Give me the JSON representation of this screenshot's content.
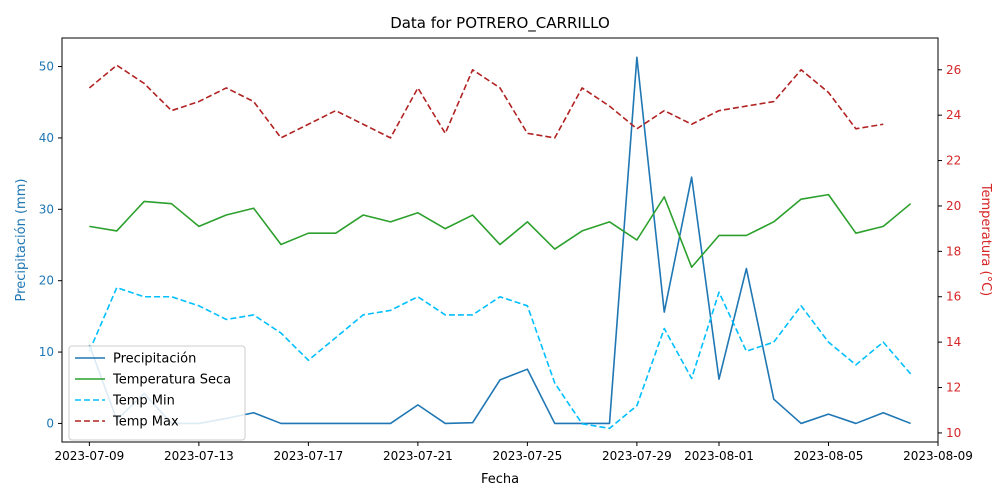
{
  "chart_data": {
    "type": "line",
    "title": "Data for POTRERO_CARRILLO",
    "xlabel": "Fecha",
    "ylabel_left": "Precipitación (mm)",
    "ylabel_right": "Temperatura (°C)",
    "x_range": [
      "2023-07-08",
      "2023-08-09"
    ],
    "ylim_left": [
      -2.6,
      54
    ],
    "ylim_right": [
      9.6,
      27.4
    ],
    "x_ticks": [
      "2023-07-09",
      "2023-07-13",
      "2023-07-17",
      "2023-07-21",
      "2023-07-25",
      "2023-07-29",
      "2023-08-01",
      "2023-08-05",
      "2023-08-09"
    ],
    "y_ticks_left": [
      0,
      10,
      20,
      30,
      40,
      50
    ],
    "y_ticks_right": [
      10,
      12,
      14,
      16,
      18,
      20,
      22,
      24,
      26
    ],
    "grid": false,
    "legend_position": "lower-left",
    "colors": {
      "precip": "#1f77b4",
      "temp_seca": "#2ca02c",
      "temp_min": "#00bfff",
      "temp_max": "#b22222",
      "left_axis_text": "#1f77b4",
      "right_axis_text": "#d62728"
    },
    "dates": [
      "2023-07-09",
      "2023-07-10",
      "2023-07-11",
      "2023-07-12",
      "2023-07-13",
      "2023-07-14",
      "2023-07-15",
      "2023-07-16",
      "2023-07-17",
      "2023-07-18",
      "2023-07-19",
      "2023-07-20",
      "2023-07-21",
      "2023-07-22",
      "2023-07-23",
      "2023-07-24",
      "2023-07-25",
      "2023-07-26",
      "2023-07-27",
      "2023-07-28",
      "2023-07-29",
      "2023-07-30",
      "2023-07-31",
      "2023-08-01",
      "2023-08-02",
      "2023-08-03",
      "2023-08-04",
      "2023-08-05",
      "2023-08-06",
      "2023-08-07",
      "2023-08-08"
    ],
    "series": [
      {
        "name": "Precipitación",
        "axis": "left",
        "style": "solid",
        "color_key": "precip",
        "values": [
          11.0,
          0.5,
          4.2,
          0.0,
          0.0,
          0.7,
          1.5,
          0.0,
          0.0,
          0.0,
          0.0,
          0.0,
          2.6,
          0.0,
          0.1,
          6.1,
          7.6,
          0.0,
          0.0,
          0.0,
          51.3,
          15.6,
          34.5,
          6.2,
          21.7,
          3.4,
          0.0,
          1.3,
          0.0,
          1.5,
          0.0
        ]
      },
      {
        "name": "Temperatura Seca",
        "axis": "right",
        "style": "solid",
        "color_key": "temp_seca",
        "values": [
          19.1,
          18.9,
          20.2,
          20.1,
          19.1,
          19.6,
          19.9,
          18.3,
          18.8,
          18.8,
          19.6,
          19.3,
          19.7,
          19.0,
          19.6,
          18.3,
          19.3,
          18.1,
          18.9,
          19.3,
          18.5,
          20.4,
          17.3,
          18.7,
          18.7,
          19.3,
          20.3,
          20.5,
          18.8,
          19.1,
          20.1
        ]
      },
      {
        "name": "Temp Min",
        "axis": "right",
        "style": "dashed",
        "color_key": "temp_min",
        "values": [
          13.6,
          16.4,
          16.0,
          16.0,
          15.6,
          15.0,
          15.2,
          14.4,
          13.2,
          14.2,
          15.2,
          15.4,
          16.0,
          15.2,
          15.2,
          16.0,
          15.6,
          12.2,
          10.4,
          10.2,
          11.2,
          14.6,
          12.4,
          16.2,
          13.6,
          14.0,
          15.6,
          14.0,
          13.0,
          14.0,
          12.6
        ]
      },
      {
        "name": "Temp Max",
        "axis": "right",
        "style": "dashed",
        "color_key": "temp_max",
        "values": [
          25.2,
          26.2,
          25.4,
          24.2,
          24.6,
          25.2,
          24.6,
          23.0,
          23.6,
          24.2,
          23.6,
          23.0,
          25.2,
          23.2,
          26.0,
          25.2,
          23.2,
          23.0,
          25.2,
          24.4,
          23.4,
          24.2,
          23.6,
          24.2,
          24.4,
          24.6,
          26.0,
          25.0,
          23.4,
          23.6,
          null
        ]
      }
    ]
  }
}
